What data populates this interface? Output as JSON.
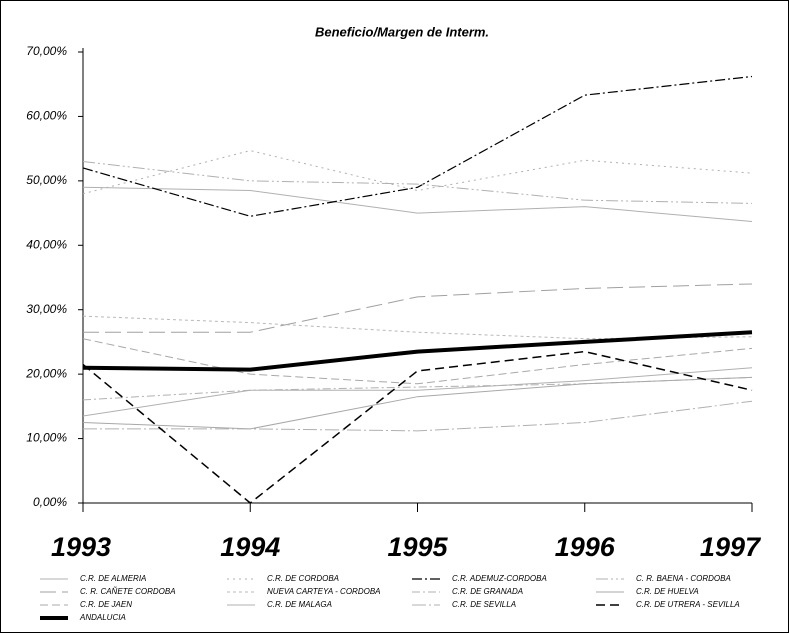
{
  "chart_data": {
    "type": "line",
    "title": "Beneficio/Margen de Interm.",
    "categories": [
      "1993",
      "1994",
      "1995",
      "1996",
      "1997"
    ],
    "ylim": [
      0,
      70
    ],
    "yticks": [
      {
        "value": 0,
        "label": "0,00%"
      },
      {
        "value": 10,
        "label": "10,00%"
      },
      {
        "value": 20,
        "label": "20,00%"
      },
      {
        "value": 30,
        "label": "30,00%"
      },
      {
        "value": 40,
        "label": "40,00%"
      },
      {
        "value": 50,
        "label": "50,00%"
      },
      {
        "value": 60,
        "label": "60,00%"
      },
      {
        "value": 70,
        "label": "70,00%"
      }
    ],
    "series": [
      {
        "name": "C.R. DE ALMERIA",
        "color": "#b0b0b0",
        "dash": "none",
        "width": 1,
        "values": [
          49,
          48.5,
          45,
          46,
          43.7
        ]
      },
      {
        "name": "C.R. DE CORDOBA",
        "color": "#b0b0b0",
        "dash": "2 4",
        "width": 1,
        "values": [
          48,
          54.7,
          48.5,
          53.2,
          51.2
        ]
      },
      {
        "name": "C.R. ADEMUZ-CORDOBA",
        "color": "#000000",
        "dash": "10 3 2 3",
        "width": 1.2,
        "values": [
          52,
          44.5,
          49,
          63.3,
          66.2
        ]
      },
      {
        "name": "C. R. BAENA - CORDOBA",
        "color": "#b0b0b0",
        "dash": "12 3 2 3 2 3",
        "width": 1,
        "values": [
          53,
          50,
          49.5,
          47,
          46.5
        ]
      },
      {
        "name": "C. R. CAÑETE CORDOBA",
        "color": "#a0a0a0",
        "dash": "16 6",
        "width": 1,
        "values": [
          26.5,
          26.5,
          32,
          33.3,
          34
        ]
      },
      {
        "name": "NUEVA CARTEYA - CORDOBA",
        "color": "#b8b8b8",
        "dash": "3 3",
        "width": 1,
        "values": [
          29,
          28,
          26.5,
          25.5,
          25.8
        ]
      },
      {
        "name": "C.R. DE GRANADA",
        "color": "#b0b0b0",
        "dash": "8 3 2 3",
        "width": 1,
        "values": [
          16,
          17.5,
          18,
          18.5,
          19.5
        ]
      },
      {
        "name": "C.R. DE HUELVA",
        "color": "#a8a8a8",
        "dash": "none",
        "width": 1,
        "values": [
          12.5,
          11.5,
          16.5,
          18.5,
          19.5
        ]
      },
      {
        "name": "C.R. DE JAEN",
        "color": "#a8a8a8",
        "dash": "8 4",
        "width": 1,
        "values": [
          25.5,
          20,
          18.5,
          21.5,
          24
        ]
      },
      {
        "name": "C.R. DE MALAGA",
        "color": "#b0b0b0",
        "dash": "none",
        "width": 1,
        "values": [
          13.5,
          17.5,
          17.5,
          19,
          21
        ]
      },
      {
        "name": "C.R. DE SEVILLA",
        "color": "#b0b0b0",
        "dash": "14 3 2 3",
        "width": 1,
        "values": [
          11.5,
          11.5,
          11.2,
          12.5,
          15.8
        ]
      },
      {
        "name": "C.R. DE UTRERA - SEVILLA",
        "color": "#000000",
        "dash": "9 5",
        "width": 1.5,
        "values": [
          21.5,
          0,
          20.5,
          23.5,
          17.5
        ]
      },
      {
        "name": "ANDALUCIA",
        "color": "#000000",
        "dash": "none",
        "width": 4,
        "values": [
          21,
          20.7,
          23.5,
          25,
          26.5
        ]
      }
    ]
  }
}
